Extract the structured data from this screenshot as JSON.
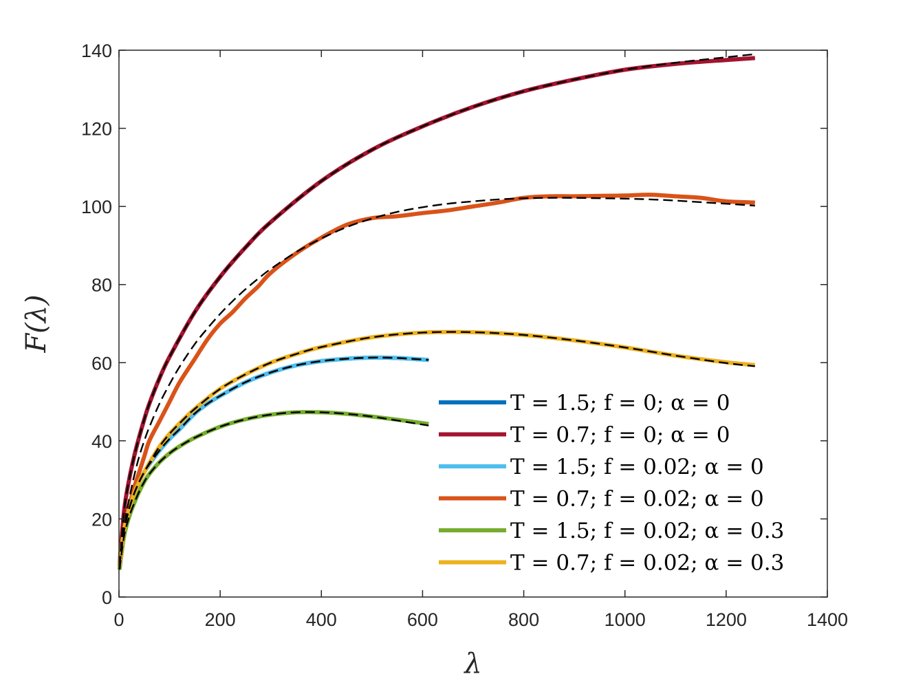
{
  "chart_data": {
    "type": "line",
    "title": "",
    "xlabel": "λ",
    "ylabel": "F(λ)",
    "xlim": [
      0,
      1400
    ],
    "ylim": [
      0,
      140
    ],
    "xticks": [
      0,
      200,
      400,
      600,
      800,
      1000,
      1200,
      1400
    ],
    "yticks": [
      0,
      20,
      40,
      60,
      80,
      100,
      120,
      140
    ],
    "grid": false,
    "legend_position": "bottom-right",
    "fit_style": "black dashed",
    "series": [
      {
        "name": "T = 1.5; f = 0; α = 0",
        "color": "#0072BD",
        "x": [
          1,
          10,
          20,
          30,
          40,
          50,
          60,
          80,
          100,
          120,
          150,
          175,
          200,
          250,
          300,
          350,
          400,
          450,
          500,
          550,
          612
        ],
        "y": [
          8,
          17,
          22.5,
          26.5,
          29.5,
          32,
          34,
          37.5,
          40.5,
          43,
          47,
          49.5,
          51.5,
          55,
          57.5,
          59.3,
          60.4,
          61,
          61.3,
          61.2,
          60.7
        ],
        "fit": [
          8,
          17,
          22.5,
          26.5,
          29.5,
          32,
          34,
          37.5,
          40.5,
          43,
          47,
          49.5,
          51.5,
          55,
          57.5,
          59.3,
          60.4,
          61,
          61.3,
          61.2,
          60.7
        ]
      },
      {
        "name": "T = 0.7; f = 0; α = 0",
        "color": "#A2142F",
        "x": [
          1,
          10,
          20,
          30,
          40,
          50,
          60,
          80,
          100,
          150,
          200,
          250,
          300,
          400,
          500,
          600,
          700,
          800,
          900,
          1000,
          1100,
          1200,
          1257
        ],
        "y": [
          8,
          22,
          30,
          36,
          41,
          45.5,
          49.5,
          56,
          61.5,
          73,
          82,
          89.5,
          96,
          106.5,
          114.5,
          120.5,
          125.5,
          129.5,
          132.5,
          135,
          136.5,
          137.5,
          138
        ],
        "fit": [
          8,
          22,
          30,
          36,
          41,
          45.5,
          49.5,
          56,
          61.5,
          73,
          82,
          89.5,
          96,
          106.5,
          114.5,
          120.5,
          125.5,
          129.5,
          132.5,
          135,
          136.8,
          138.2,
          139
        ]
      },
      {
        "name": "T = 1.5; f = 0.02; α = 0",
        "color": "#4DBEEE",
        "x": [
          1,
          10,
          20,
          30,
          40,
          50,
          60,
          80,
          100,
          120,
          150,
          175,
          200,
          250,
          300,
          350,
          400,
          450,
          500,
          550,
          612
        ],
        "y": [
          8,
          17,
          22.5,
          26.5,
          29.5,
          32,
          34,
          37.5,
          40.5,
          43,
          47,
          49.5,
          51.5,
          55,
          57.5,
          59.3,
          60.4,
          61,
          61.3,
          61.2,
          60.7
        ],
        "fit": [
          8,
          17,
          22.5,
          26.5,
          29.5,
          32,
          34,
          37.5,
          40.5,
          43,
          47,
          49.5,
          51.5,
          55,
          57.5,
          59.3,
          60.4,
          61,
          61.3,
          61.2,
          60.7
        ]
      },
      {
        "name": "T = 0.7; f = 0.02; α = 0",
        "color": "#D95319",
        "x": [
          1,
          10,
          20,
          30,
          40,
          50,
          60,
          80,
          100,
          120,
          150,
          175,
          200,
          225,
          250,
          275,
          300,
          350,
          400,
          450,
          500,
          550,
          600,
          650,
          700,
          750,
          800,
          850,
          900,
          950,
          1000,
          1050,
          1100,
          1150,
          1200,
          1257
        ],
        "y": [
          8,
          17,
          23,
          28,
          32,
          36,
          40,
          45,
          50,
          55,
          61,
          66,
          70,
          73,
          76.5,
          79.5,
          83,
          88,
          92,
          95.3,
          97,
          97.5,
          98.3,
          99,
          100,
          101,
          102.2,
          102.6,
          102.6,
          102.7,
          102.8,
          103,
          102.6,
          102.2,
          101.3,
          101
        ],
        "fit": [
          8,
          18,
          25,
          31,
          36,
          40,
          43.5,
          49.5,
          54.5,
          59,
          64.8,
          68.8,
          72.5,
          75.8,
          78.8,
          81.5,
          84,
          88.3,
          91.8,
          94.7,
          96.9,
          98.6,
          99.8,
          100.7,
          101.3,
          101.8,
          102.1,
          102.2,
          102.2,
          102.1,
          102,
          101.8,
          101.5,
          101.1,
          100.7,
          100.2
        ]
      },
      {
        "name": "T = 1.5; f = 0.02; α = 0.3",
        "color": "#77AC30",
        "x": [
          1,
          10,
          20,
          30,
          40,
          50,
          60,
          80,
          100,
          120,
          150,
          200,
          250,
          300,
          350,
          400,
          450,
          500,
          550,
          612
        ],
        "y": [
          7,
          15.5,
          20.5,
          24,
          27,
          29.5,
          31.5,
          34.5,
          36.8,
          38.6,
          40.8,
          43.6,
          45.5,
          46.7,
          47.3,
          47.3,
          46.9,
          46.2,
          45.4,
          44.3
        ],
        "fit": [
          7,
          15.5,
          20.5,
          24,
          27,
          29.5,
          31.5,
          34.5,
          36.8,
          38.6,
          40.8,
          43.6,
          45.5,
          46.7,
          47.3,
          47.3,
          46.9,
          46.2,
          45.2,
          43.9
        ]
      },
      {
        "name": "T = 0.7; f = 0.02; α = 0.3",
        "color": "#EDB120",
        "x": [
          1,
          10,
          20,
          30,
          40,
          50,
          60,
          80,
          100,
          120,
          150,
          200,
          250,
          300,
          350,
          400,
          500,
          600,
          700,
          800,
          900,
          1000,
          1100,
          1200,
          1257
        ],
        "y": [
          8,
          17,
          22.5,
          26.5,
          29.5,
          32,
          34.3,
          38.5,
          41.8,
          44.5,
          48.2,
          53.3,
          57,
          60,
          62.2,
          64,
          66.5,
          67.7,
          67.8,
          67.1,
          65.7,
          63.9,
          61.8,
          60.1,
          59.4
        ],
        "fit": [
          8,
          17,
          22.5,
          26.5,
          29.5,
          32,
          34.3,
          38.5,
          41.8,
          44.5,
          48.2,
          53.3,
          57,
          60,
          62.2,
          64,
          66.5,
          67.7,
          67.8,
          67.1,
          65.7,
          63.9,
          61.8,
          59.9,
          59.1
        ]
      }
    ]
  }
}
